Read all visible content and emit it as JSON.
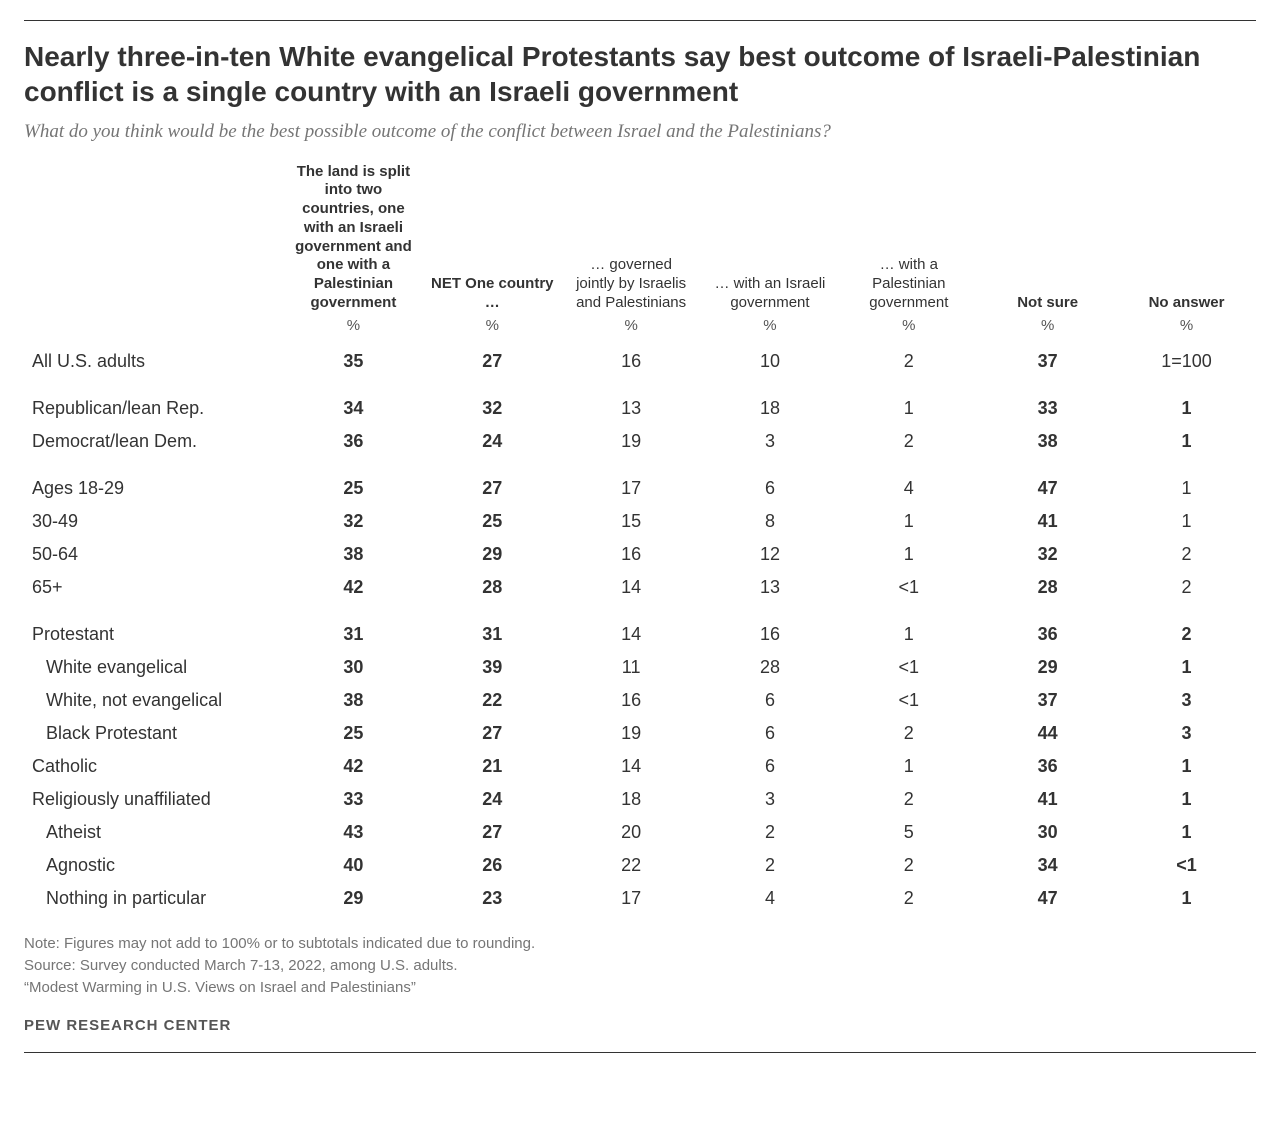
{
  "type": "table",
  "colors": {
    "text": "#333333",
    "muted": "#757575",
    "rule": "#333333",
    "background": "#ffffff"
  },
  "typography": {
    "title_font": "Arial",
    "title_fontsize_pt": 21,
    "body_font": "Arial",
    "body_fontsize_pt": 13,
    "subtitle_font": "Georgia",
    "subtitle_fontsize_pt": 14
  },
  "title": "Nearly three-in-ten White evangelical Protestants say best outcome of Israeli-Palestinian conflict is a single country with an Israeli government",
  "subtitle": "What do you think would be the best possible outcome of the conflict between Israel and the Palestinians?",
  "columns": [
    "The land is split into two countries, one with an Israeli government and one with a Palestinian government",
    "NET One country …",
    "… governed jointly by Israelis and Palestinians",
    "… with an Israeli government",
    "… with a Palestinian government",
    "Not sure",
    "No answer"
  ],
  "column_bold": [
    true,
    true,
    false,
    false,
    false,
    true,
    true
  ],
  "unit_label": "%",
  "rows": [
    {
      "label": "All U.S. adults",
      "cells": [
        "35",
        "27",
        "16",
        "10",
        "2",
        "37",
        "1=100"
      ],
      "indent": 0,
      "group_start": false,
      "last_plain": true
    },
    {
      "label": "Republican/lean Rep.",
      "cells": [
        "34",
        "32",
        "13",
        "18",
        "1",
        "33",
        "1"
      ],
      "indent": 0,
      "group_start": true
    },
    {
      "label": "Democrat/lean Dem.",
      "cells": [
        "36",
        "24",
        "19",
        "3",
        "2",
        "38",
        "1"
      ],
      "indent": 0,
      "group_start": false
    },
    {
      "label": "Ages 18-29",
      "cells": [
        "25",
        "27",
        "17",
        "6",
        "4",
        "47",
        "1"
      ],
      "indent": 0,
      "group_start": true,
      "last_plain": true
    },
    {
      "label": "30-49",
      "cells": [
        "32",
        "25",
        "15",
        "8",
        "1",
        "41",
        "1"
      ],
      "indent": 0,
      "group_start": false,
      "last_plain": true
    },
    {
      "label": "50-64",
      "cells": [
        "38",
        "29",
        "16",
        "12",
        "1",
        "32",
        "2"
      ],
      "indent": 0,
      "group_start": false,
      "last_plain": true
    },
    {
      "label": "65+",
      "cells": [
        "42",
        "28",
        "14",
        "13",
        "<1",
        "28",
        "2"
      ],
      "indent": 0,
      "group_start": false,
      "last_plain": true
    },
    {
      "label": "Protestant",
      "cells": [
        "31",
        "31",
        "14",
        "16",
        "1",
        "36",
        "2"
      ],
      "indent": 0,
      "group_start": true
    },
    {
      "label": "White evangelical",
      "cells": [
        "30",
        "39",
        "11",
        "28",
        "<1",
        "29",
        "1"
      ],
      "indent": 1,
      "group_start": false
    },
    {
      "label": "White, not evangelical",
      "cells": [
        "38",
        "22",
        "16",
        "6",
        "<1",
        "37",
        "3"
      ],
      "indent": 1,
      "group_start": false
    },
    {
      "label": "Black Protestant",
      "cells": [
        "25",
        "27",
        "19",
        "6",
        "2",
        "44",
        "3"
      ],
      "indent": 1,
      "group_start": false
    },
    {
      "label": "Catholic",
      "cells": [
        "42",
        "21",
        "14",
        "6",
        "1",
        "36",
        "1"
      ],
      "indent": 0,
      "group_start": false
    },
    {
      "label": "Religiously unaffiliated",
      "cells": [
        "33",
        "24",
        "18",
        "3",
        "2",
        "41",
        "1"
      ],
      "indent": 0,
      "group_start": false
    },
    {
      "label": "Atheist",
      "cells": [
        "43",
        "27",
        "20",
        "2",
        "5",
        "30",
        "1"
      ],
      "indent": 1,
      "group_start": false
    },
    {
      "label": "Agnostic",
      "cells": [
        "40",
        "26",
        "22",
        "2",
        "2",
        "34",
        "<1"
      ],
      "indent": 1,
      "group_start": false
    },
    {
      "label": "Nothing in particular",
      "cells": [
        "29",
        "23",
        "17",
        "4",
        "2",
        "47",
        "1"
      ],
      "indent": 1,
      "group_start": false
    }
  ],
  "notes": [
    "Note: Figures may not add to 100% or to subtotals indicated due to rounding.",
    "Source: Survey conducted March 7-13, 2022, among U.S. adults.",
    "“Modest Warming in U.S. Views on Israel and Palestinians”"
  ],
  "logo": "PEW RESEARCH CENTER"
}
